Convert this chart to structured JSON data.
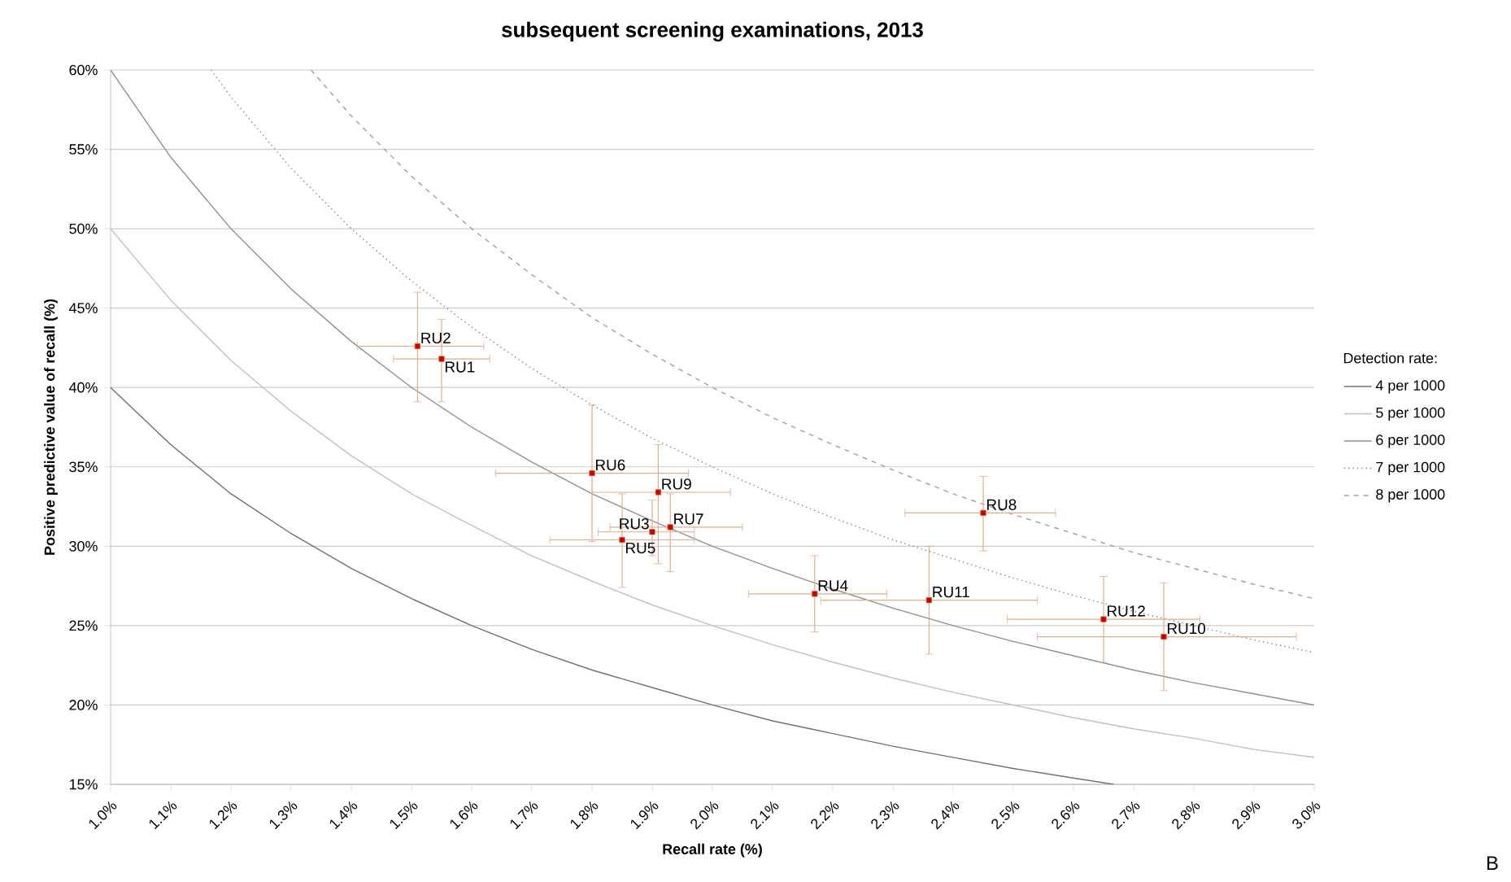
{
  "chart_data": {
    "type": "scatter",
    "title": "subsequent screening examinations, 2013",
    "xlabel": "Recall rate (%)",
    "ylabel": "Positive predictive value of recall  (%)",
    "legend_title": "Detection rate:",
    "legend": "right",
    "grid": "y",
    "xlim": [
      1.0,
      3.0
    ],
    "ylim": [
      15,
      60
    ],
    "xticks": [
      {
        "value": 1.0,
        "label": "1.0%"
      },
      {
        "value": 1.1,
        "label": "1.1%"
      },
      {
        "value": 1.2,
        "label": "1.2%"
      },
      {
        "value": 1.3,
        "label": "1.3%"
      },
      {
        "value": 1.4,
        "label": "1.4%"
      },
      {
        "value": 1.5,
        "label": "1.5%"
      },
      {
        "value": 1.6,
        "label": "1.6%"
      },
      {
        "value": 1.7,
        "label": "1.7%"
      },
      {
        "value": 1.8,
        "label": "1.8%"
      },
      {
        "value": 1.9,
        "label": "1.9%"
      },
      {
        "value": 2.0,
        "label": "2.0%"
      },
      {
        "value": 2.1,
        "label": "2.1%"
      },
      {
        "value": 2.2,
        "label": "2.2%"
      },
      {
        "value": 2.3,
        "label": "2.3%"
      },
      {
        "value": 2.4,
        "label": "2.4%"
      },
      {
        "value": 2.5,
        "label": "2.5%"
      },
      {
        "value": 2.6,
        "label": "2.6%"
      },
      {
        "value": 2.7,
        "label": "2.7%"
      },
      {
        "value": 2.8,
        "label": "2.8%"
      },
      {
        "value": 2.9,
        "label": "2.9%"
      },
      {
        "value": 3.0,
        "label": "3.0%"
      }
    ],
    "yticks": [
      {
        "value": 15,
        "label": "15%"
      },
      {
        "value": 20,
        "label": "20%"
      },
      {
        "value": 25,
        "label": "25%"
      },
      {
        "value": 30,
        "label": "30%"
      },
      {
        "value": 35,
        "label": "35%"
      },
      {
        "value": 40,
        "label": "40%"
      },
      {
        "value": 45,
        "label": "45%"
      },
      {
        "value": 50,
        "label": "50%"
      },
      {
        "value": 55,
        "label": "55%"
      },
      {
        "value": 60,
        "label": "60%"
      }
    ],
    "annotations": [
      "B"
    ],
    "series": [
      {
        "name": "4 per 1000",
        "type": "line",
        "color": "#707070",
        "line_style": "solid",
        "marker": "none",
        "x": [
          1.0,
          1.1,
          1.2,
          1.3,
          1.4,
          1.5,
          1.6,
          1.7,
          1.8,
          1.9,
          2.0,
          2.1,
          2.2,
          2.3,
          2.4,
          2.5,
          2.6,
          2.667
        ],
        "values": [
          40,
          36.4,
          33.3,
          30.8,
          28.6,
          26.7,
          25,
          23.5,
          22.2,
          21.1,
          20,
          19.0,
          18.2,
          17.4,
          16.7,
          16,
          15.4,
          15
        ]
      },
      {
        "name": "5 per 1000",
        "type": "line",
        "color": "#c0c0c0",
        "line_style": "solid",
        "marker": "none",
        "x": [
          1.0,
          1.1,
          1.2,
          1.3,
          1.4,
          1.5,
          1.6,
          1.7,
          1.8,
          1.9,
          2.0,
          2.1,
          2.2,
          2.3,
          2.4,
          2.5,
          2.6,
          2.7,
          2.8,
          2.9,
          3.0
        ],
        "values": [
          50,
          45.5,
          41.7,
          38.5,
          35.7,
          33.3,
          31.3,
          29.4,
          27.8,
          26.3,
          25,
          23.8,
          22.7,
          21.7,
          20.8,
          20,
          19.2,
          18.5,
          17.9,
          17.2,
          16.7
        ]
      },
      {
        "name": "6 per 1000",
        "type": "line",
        "color": "#909090",
        "line_style": "solid",
        "marker": "none",
        "x": [
          1.0,
          1.1,
          1.2,
          1.3,
          1.4,
          1.5,
          1.6,
          1.7,
          1.8,
          1.9,
          2.0,
          2.1,
          2.2,
          2.3,
          2.4,
          2.5,
          2.6,
          2.7,
          2.8,
          2.9,
          3.0
        ],
        "values": [
          60,
          54.5,
          50,
          46.2,
          42.9,
          40,
          37.5,
          35.3,
          33.3,
          31.6,
          30,
          28.6,
          27.3,
          26.1,
          25,
          24,
          23.1,
          22.2,
          21.4,
          20.7,
          20
        ]
      },
      {
        "name": "7 per 1000",
        "type": "line",
        "color": "#808080",
        "line_style": "dotted",
        "marker": "none",
        "x": [
          1.167,
          1.2,
          1.3,
          1.4,
          1.5,
          1.6,
          1.7,
          1.8,
          1.9,
          2.0,
          2.1,
          2.2,
          2.3,
          2.4,
          2.5,
          2.6,
          2.7,
          2.8,
          2.9,
          3.0
        ],
        "values": [
          60,
          58.3,
          53.8,
          50,
          46.7,
          43.8,
          41.2,
          38.9,
          36.8,
          35,
          33.3,
          31.8,
          30.4,
          29.2,
          28,
          26.9,
          25.9,
          25,
          24.1,
          23.3
        ]
      },
      {
        "name": "8 per 1000",
        "type": "line",
        "color": "#a0a0a0",
        "line_style": "dashed",
        "marker": "none",
        "x": [
          1.333,
          1.4,
          1.5,
          1.6,
          1.7,
          1.8,
          1.9,
          2.0,
          2.1,
          2.2,
          2.3,
          2.4,
          2.5,
          2.6,
          2.7,
          2.8,
          2.9,
          3.0
        ],
        "values": [
          60,
          57.1,
          53.3,
          50,
          47.1,
          44.4,
          42.1,
          40,
          38.1,
          36.4,
          34.8,
          33.3,
          32,
          30.8,
          29.6,
          28.6,
          27.6,
          26.7
        ]
      },
      {
        "type": "scatter",
        "color": "#c8662f",
        "marker": "square",
        "x": [
          1.55,
          1.51,
          1.9,
          2.17,
          1.85,
          1.8,
          1.93,
          2.45,
          1.91,
          2.75,
          2.36,
          2.65
        ],
        "values": [
          41.8,
          42.6,
          30.9,
          27.0,
          30.4,
          34.6,
          31.2,
          32.1,
          33.4,
          24.3,
          26.6,
          25.4
        ],
        "xerrors": [
          [
            1.47,
            1.63
          ],
          [
            1.41,
            1.62
          ],
          [
            1.81,
            1.97
          ],
          [
            2.06,
            2.29
          ],
          [
            1.73,
            1.97
          ],
          [
            1.64,
            1.96
          ],
          [
            1.83,
            2.05
          ],
          [
            2.32,
            2.57
          ],
          [
            1.8,
            2.03
          ],
          [
            2.54,
            2.97
          ],
          [
            2.18,
            2.54
          ],
          [
            2.49,
            2.81
          ]
        ],
        "errors": [
          [
            39.1,
            44.3
          ],
          [
            39.1,
            46.0
          ],
          [
            29.4,
            32.9
          ],
          [
            24.6,
            29.4
          ],
          [
            27.4,
            33.3
          ],
          [
            30.3,
            38.9
          ],
          [
            28.4,
            33.3
          ],
          [
            29.7,
            34.4
          ],
          [
            28.9,
            36.4
          ],
          [
            20.9,
            27.7
          ],
          [
            23.2,
            30.0
          ],
          [
            22.7,
            28.1
          ]
        ],
        "value_labels": [
          "RU1",
          "RU2",
          "RU3",
          "RU4",
          "RU5",
          "RU6",
          "RU7",
          "RU8",
          "RU9",
          "RU10",
          "RU11",
          "RU12"
        ]
      }
    ]
  }
}
